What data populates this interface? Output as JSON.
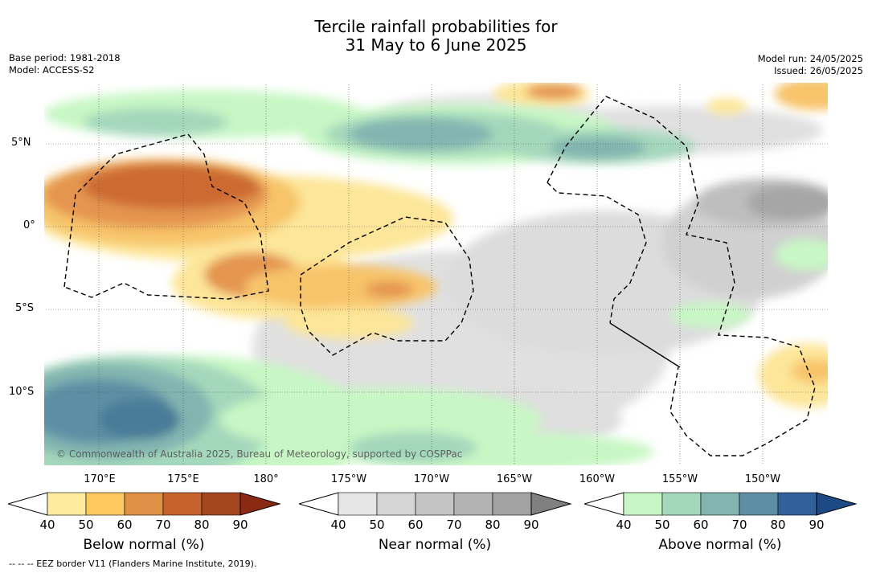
{
  "title_line1": "Tercile rainfall probabilities for",
  "title_line2": "31 May to 6 June 2025",
  "left_meta": {
    "base_period": "Base period: 1981-2018",
    "model": "Model: ACCESS-S2"
  },
  "right_meta": {
    "model_run": "Model run: 24/05/2025",
    "issued": "Issued: 26/05/2025"
  },
  "lat_labels": [
    "5°N",
    "0°",
    "5°S",
    "10°S"
  ],
  "lon_labels": [
    "170°E",
    "175°E",
    "180°",
    "175°W",
    "170°W",
    "165°W",
    "160°W",
    "155°W",
    "150°W"
  ],
  "copyright": "© Commonwealth of Australia 2025, Bureau of Meteorology, supported by COSPPac",
  "colorbars": [
    {
      "label": "Below normal (%)",
      "ticks": [
        "40",
        "50",
        "60",
        "70",
        "80",
        "90"
      ],
      "colors": [
        "#ffffff",
        "#feeb9e",
        "#fdc95e",
        "#e09045",
        "#c8622c",
        "#a4471f",
        "#8b2a14"
      ]
    },
    {
      "label": "Near normal (%)",
      "ticks": [
        "40",
        "50",
        "60",
        "70",
        "80",
        "90"
      ],
      "colors": [
        "#ffffff",
        "#e6e6e6",
        "#d5d5d5",
        "#c4c4c4",
        "#b3b3b3",
        "#a2a2a2",
        "#808080"
      ]
    },
    {
      "label": "Above normal (%)",
      "ticks": [
        "40",
        "50",
        "60",
        "70",
        "80",
        "90"
      ],
      "colors": [
        "#ffffff",
        "#c8f7c5",
        "#a4d8bb",
        "#82b5b0",
        "#5d8ea4",
        "#32609a",
        "#1d4a85"
      ]
    }
  ],
  "footnote": "--  --  -- EEZ border V11 (Flanders Marine Institute, 2019)."
}
